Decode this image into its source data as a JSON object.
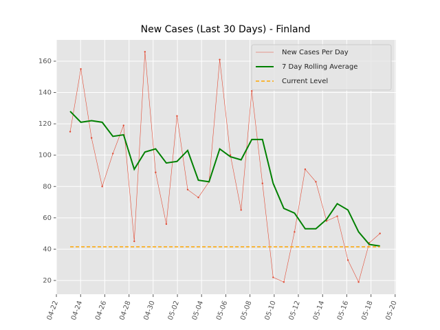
{
  "chart_data": {
    "type": "line",
    "title": "New Cases (Last 30 Days) - Finland",
    "categories": [
      null,
      null,
      null,
      null,
      null,
      null,
      null,
      null,
      null,
      null,
      null,
      null,
      null,
      null,
      null,
      null,
      null,
      null,
      null,
      null,
      null,
      null,
      null,
      null,
      null,
      null,
      null,
      null,
      null,
      null
    ],
    "series": [
      {
        "name": "New Cases Per Day",
        "color": "#e24a33",
        "style": "thin-markers",
        "values": [
          115,
          155,
          111,
          80,
          101,
          119,
          45,
          166,
          89,
          56,
          125,
          78,
          73,
          83,
          161,
          100,
          65,
          141,
          82,
          22,
          19,
          51,
          91,
          83,
          58,
          61,
          33,
          19,
          44,
          50
        ]
      },
      {
        "name": "7 Day Rolling Average",
        "color": "#008000",
        "style": "bold",
        "values": [
          128,
          121,
          122,
          121,
          112,
          113,
          91,
          102,
          104,
          95,
          96,
          103,
          84,
          83,
          104,
          99,
          97,
          110,
          110,
          82,
          66,
          63,
          53,
          53,
          59,
          69,
          65,
          51,
          43,
          42
        ]
      },
      {
        "name": "Current Level",
        "color": "#ffa500",
        "style": "dashed",
        "values": [
          41.5,
          41.5,
          41.5,
          41.5,
          41.5,
          41.5,
          41.5,
          41.5,
          41.5,
          41.5,
          41.5,
          41.5,
          41.5,
          41.5,
          41.5,
          41.5,
          41.5,
          41.5,
          41.5,
          41.5,
          41.5,
          41.5,
          41.5,
          41.5,
          41.5,
          41.5,
          41.5,
          41.5,
          41.5,
          41.5
        ]
      }
    ],
    "xlim": [
      -1.29,
      30.5
    ],
    "xticks": [
      {
        "value": -1.29,
        "label": "04-22"
      },
      {
        "value": 0.98,
        "label": "04-24"
      },
      {
        "value": 3.24,
        "label": "04-26"
      },
      {
        "value": 5.51,
        "label": "04-28"
      },
      {
        "value": 7.77,
        "label": "04-30"
      },
      {
        "value": 10.04,
        "label": "05-02"
      },
      {
        "value": 12.3,
        "label": "05-04"
      },
      {
        "value": 14.57,
        "label": "05-06"
      },
      {
        "value": 16.83,
        "label": "05-08"
      },
      {
        "value": 19.1,
        "label": "05-10"
      },
      {
        "value": 21.36,
        "label": "05-12"
      },
      {
        "value": 23.63,
        "label": "05-14"
      },
      {
        "value": 25.89,
        "label": "05-16"
      },
      {
        "value": 28.16,
        "label": "05-18"
      },
      {
        "value": 30.42,
        "label": "05-20"
      }
    ],
    "ylim": [
      11.2,
      173.6
    ],
    "yticks": [
      20,
      40,
      60,
      80,
      100,
      120,
      140,
      160
    ],
    "grid": true,
    "legend": "upper right"
  }
}
